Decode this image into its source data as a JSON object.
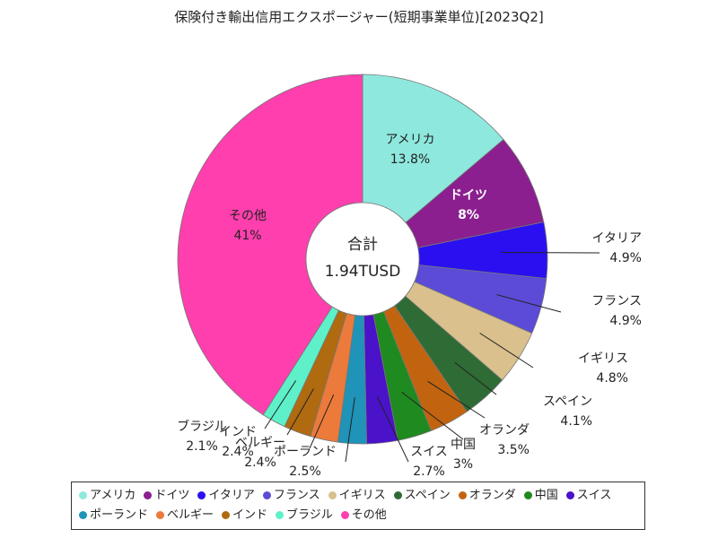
{
  "chart_data": {
    "type": "pie",
    "title": "保険付き輸出信用エクスポージャー(短期事業単位)[2023Q2]",
    "center_label": "合計",
    "center_value": "1.94TUSD",
    "categories": [
      "アメリカ",
      "ドイツ",
      "イタリア",
      "フランス",
      "イギリス",
      "スペイン",
      "オランダ",
      "中国",
      "スイス",
      "ポーランド",
      "ベルギー",
      "インド",
      "ブラジル",
      "その他"
    ],
    "values": [
      13.8,
      8,
      4.9,
      4.9,
      4.8,
      4.1,
      3.5,
      3,
      2.7,
      2.5,
      2.4,
      2.4,
      2.1,
      41
    ],
    "value_labels": [
      "13.8%",
      "8%",
      "4.9%",
      "4.9%",
      "4.8%",
      "4.1%",
      "3.5%",
      "3%",
      "2.7%",
      "2.5%",
      "2.4%",
      "2.4%",
      "2.1%",
      "41%"
    ],
    "colors": [
      "#8ee8de",
      "#8b1f8f",
      "#2a10f0",
      "#5b4bd6",
      "#d9c08c",
      "#2f6b35",
      "#c2640f",
      "#1f8a1f",
      "#4a12c9",
      "#1f93b8",
      "#ec7a3a",
      "#b06a10",
      "#5ef0c8",
      "#ff3fae"
    ],
    "legend_position": "bottom"
  }
}
